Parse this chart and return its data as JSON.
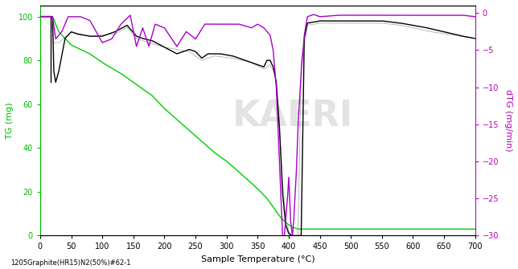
{
  "title": "",
  "xlabel": "Sample Temperature (°C)",
  "ylabel_left": "TG (mg)",
  "ylabel_right": "dTG (mg/min)",
  "footnote": "1205Graphite(HR15)N2(50%)#62-1",
  "xlim": [
    0,
    700
  ],
  "ylim_left": [
    0,
    105
  ],
  "ylim_right": [
    -30,
    1
  ],
  "xticks": [
    0,
    50,
    100,
    150,
    200,
    250,
    300,
    350,
    400,
    450,
    500,
    550,
    600,
    650,
    700
  ],
  "yticks_left": [
    0,
    20,
    40,
    60,
    80,
    100
  ],
  "yticks_right": [
    0,
    -5,
    -10,
    -15,
    -20,
    -25,
    -30
  ],
  "bg_color": "#ffffff",
  "watermark": "KAERI",
  "left_axis_color": "#00bb00",
  "right_axis_color": "#bb00bb",
  "tg_color": "#000000",
  "dtg_color": "#aa00aa",
  "green_color": "#00bb00"
}
